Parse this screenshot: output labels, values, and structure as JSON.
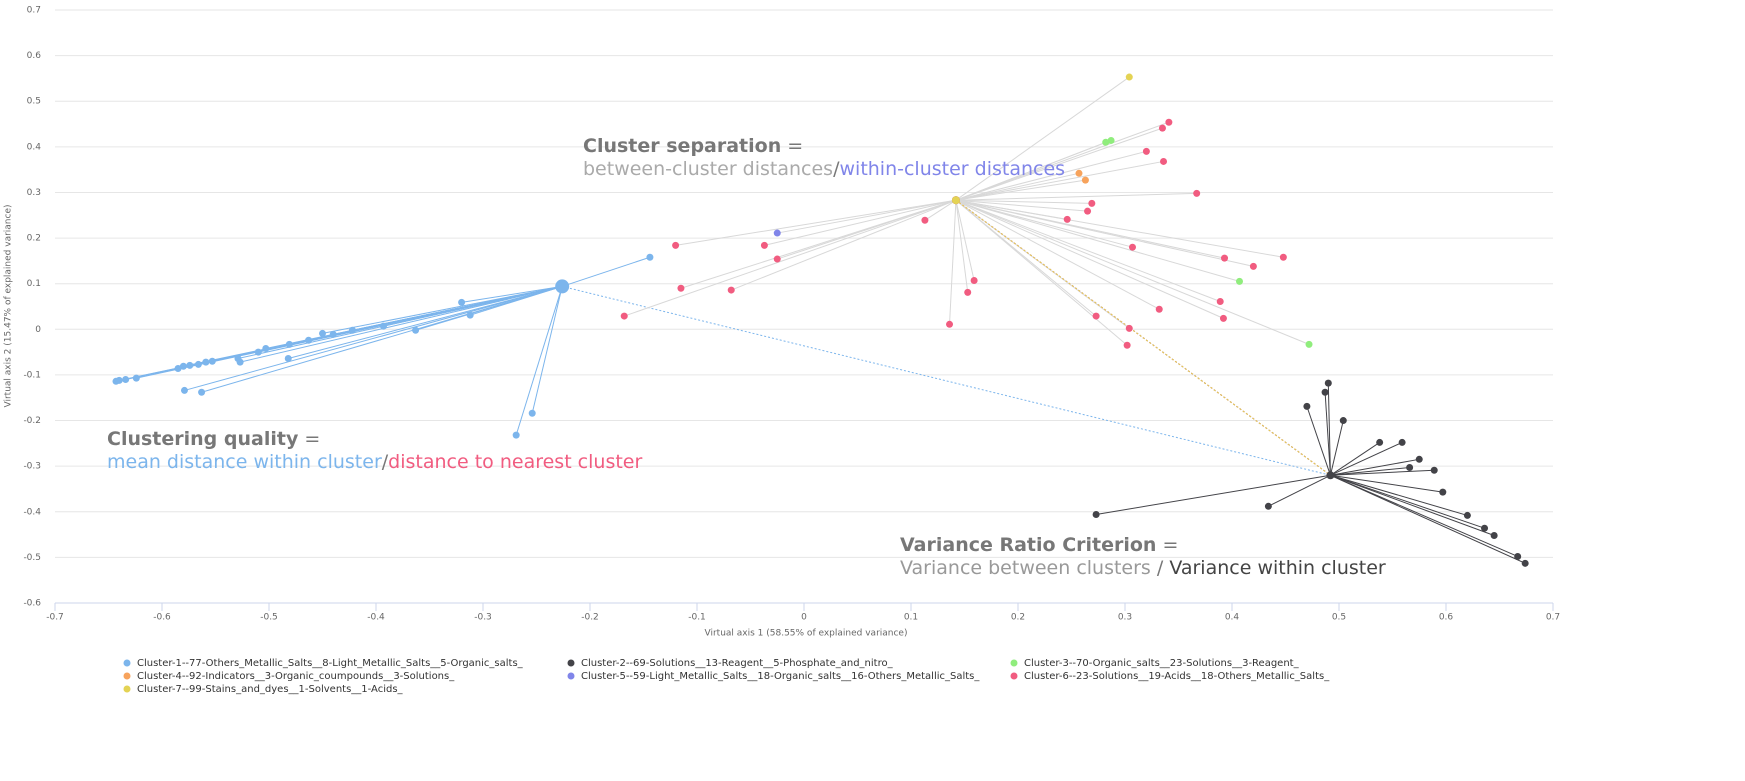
{
  "chart_data": {
    "type": "scatter",
    "xlabel": "Virtual axis 1 (58.55% of explained variance)",
    "ylabel": "Virtual axis 2 (15.47% of explained variance)",
    "xlim": [
      -0.7,
      0.7
    ],
    "xticks": [
      -0.7,
      -0.6,
      -0.5,
      -0.4,
      -0.3,
      -0.2,
      -0.1,
      0,
      0.1,
      0.2,
      0.3,
      0.4,
      0.5,
      0.6,
      0.7
    ],
    "ylim": [
      -0.6,
      0.7
    ],
    "yticks": [
      -0.6,
      -0.5,
      -0.4,
      -0.3,
      -0.2,
      -0.1,
      0,
      0.1,
      0.2,
      0.3,
      0.4,
      0.5,
      0.6,
      0.7
    ],
    "grid": true,
    "legend": "bottom",
    "series": [
      {
        "name": "Cluster-1--77-Others_Metallic_Salts__8-Light_Metallic_Salts__5-Organic_salts_",
        "color": "#7cb5ec",
        "centroid": [
          -0.226,
          0.094
        ],
        "values": [
          [
            -0.144,
            0.158
          ],
          [
            -0.32,
            0.059
          ],
          [
            -0.312,
            0.031
          ],
          [
            -0.363,
            -0.002
          ],
          [
            -0.393,
            0.007
          ],
          [
            -0.422,
            -0.002
          ],
          [
            -0.44,
            -0.011
          ],
          [
            -0.45,
            -0.009
          ],
          [
            -0.463,
            -0.024
          ],
          [
            -0.481,
            -0.033
          ],
          [
            -0.482,
            -0.064
          ],
          [
            -0.503,
            -0.042
          ],
          [
            -0.51,
            -0.05
          ],
          [
            -0.527,
            -0.072
          ],
          [
            -0.529,
            -0.064
          ],
          [
            -0.553,
            -0.07
          ],
          [
            -0.559,
            -0.072
          ],
          [
            -0.566,
            -0.077
          ],
          [
            -0.574,
            -0.079
          ],
          [
            -0.58,
            -0.081
          ],
          [
            -0.585,
            -0.086
          ],
          [
            -0.579,
            -0.134
          ],
          [
            -0.563,
            -0.138
          ],
          [
            -0.624,
            -0.107
          ],
          [
            -0.634,
            -0.11
          ],
          [
            -0.64,
            -0.112
          ],
          [
            -0.643,
            -0.114
          ],
          [
            -0.254,
            -0.184
          ],
          [
            -0.269,
            -0.232
          ]
        ]
      },
      {
        "name": "Cluster-2--69-Solutions__13-Reagent__5-Phosphate_and_nitro_",
        "color": "#434348",
        "centroid": [
          0.492,
          -0.32
        ],
        "values": [
          [
            0.49,
            -0.118
          ],
          [
            0.487,
            -0.138
          ],
          [
            0.47,
            -0.169
          ],
          [
            0.504,
            -0.2
          ],
          [
            0.538,
            -0.248
          ],
          [
            0.559,
            -0.248
          ],
          [
            0.575,
            -0.285
          ],
          [
            0.566,
            -0.303
          ],
          [
            0.589,
            -0.309
          ],
          [
            0.597,
            -0.357
          ],
          [
            0.434,
            -0.388
          ],
          [
            0.273,
            -0.406
          ],
          [
            0.62,
            -0.408
          ],
          [
            0.636,
            -0.436
          ],
          [
            0.645,
            -0.452
          ],
          [
            0.667,
            -0.498
          ],
          [
            0.674,
            -0.513
          ]
        ]
      },
      {
        "name": "Cluster-3--70-Organic_salts__23-Solutions__3-Reagent_",
        "color": "#90ed7d",
        "centroid": [
          0.142,
          0.283
        ],
        "values": [
          [
            0.282,
            0.41
          ],
          [
            0.287,
            0.414
          ],
          [
            0.407,
            0.105
          ],
          [
            0.472,
            -0.033
          ]
        ]
      },
      {
        "name": "Cluster-4--92-Indicators__3-Organic_coumpounds__3-Solutions_",
        "color": "#f7a35c",
        "centroid": [
          0.142,
          0.283
        ],
        "values": [
          [
            0.257,
            0.342
          ],
          [
            0.263,
            0.327
          ]
        ]
      },
      {
        "name": "Cluster-5--59-Light_Metallic_Salts__18-Organic_salts__16-Others_Metallic_Salts_",
        "color": "#8085e9",
        "centroid": [
          0.142,
          0.283
        ],
        "values": [
          [
            -0.025,
            0.211
          ],
          [
            0.142,
            0.283
          ]
        ]
      },
      {
        "name": "Cluster-6--23-Solutions__19-Acids__18-Others_Metallic_Salts_",
        "color": "#f15c80",
        "centroid": [
          0.142,
          0.283
        ],
        "values": [
          [
            -0.168,
            0.029
          ],
          [
            -0.12,
            0.184
          ],
          [
            -0.115,
            0.09
          ],
          [
            -0.068,
            0.086
          ],
          [
            -0.037,
            0.184
          ],
          [
            -0.025,
            0.154
          ],
          [
            0.113,
            0.239
          ],
          [
            0.136,
            0.011
          ],
          [
            0.153,
            0.081
          ],
          [
            0.159,
            0.107
          ],
          [
            0.246,
            0.241
          ],
          [
            0.265,
            0.259
          ],
          [
            0.269,
            0.276
          ],
          [
            0.273,
            0.029
          ],
          [
            0.304,
            0.002
          ],
          [
            0.302,
            -0.035
          ],
          [
            0.307,
            0.18
          ],
          [
            0.332,
            0.044
          ],
          [
            0.32,
            0.39
          ],
          [
            0.335,
            0.441
          ],
          [
            0.341,
            0.454
          ],
          [
            0.336,
            0.368
          ],
          [
            0.367,
            0.298
          ],
          [
            0.393,
            0.156
          ],
          [
            0.389,
            0.061
          ],
          [
            0.392,
            0.024
          ],
          [
            0.42,
            0.138
          ],
          [
            0.448,
            0.158
          ]
        ]
      },
      {
        "name": "Cluster-7--99-Stains_and_dyes__1-Solvents__1-Acids_",
        "color": "#e4d354",
        "centroid": [
          0.142,
          0.283
        ],
        "values": [
          [
            0.304,
            0.553
          ]
        ]
      }
    ],
    "annotations": [
      {
        "title": "Cluster separation",
        "equals": "=",
        "parts": [
          "between-cluster distances",
          "within-cluster distances"
        ],
        "separator": "/",
        "colors": [
          "#aaaaaa",
          "#8085e9"
        ]
      },
      {
        "title": "Clustering quality",
        "equals": "=",
        "parts": [
          "mean distance within cluster",
          "distance to nearest cluster"
        ],
        "separator": "/",
        "colors": [
          "#7cb5ec",
          "#f15c80"
        ]
      },
      {
        "title": "Variance Ratio Criterion",
        "equals": "=",
        "parts": [
          "Variance between clusters",
          "Variance within cluster"
        ],
        "separator": " / ",
        "colors": [
          "#999999",
          "#444444"
        ]
      }
    ]
  }
}
